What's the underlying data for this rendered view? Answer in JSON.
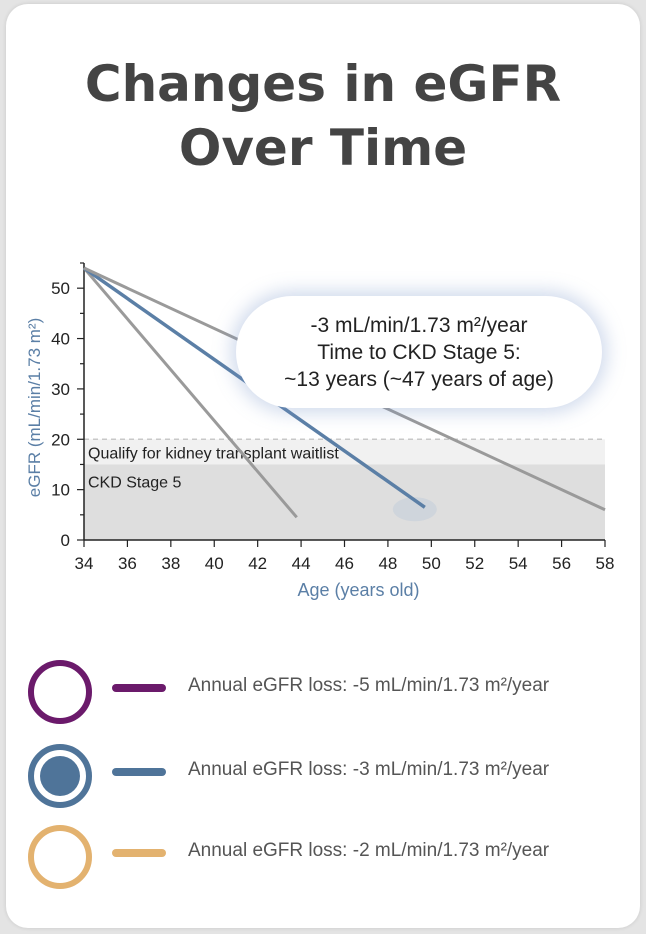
{
  "title_lines": [
    "Changes in eGFR",
    "Over Time"
  ],
  "callout": {
    "line1": "-3 mL/min/1.73 m²/year",
    "line2": "Time to CKD Stage 5:",
    "line3": "~13 years (~47 years of age)"
  },
  "legend": [
    {
      "label": "Annual eGFR loss: -5 mL/min/1.73 m²/year",
      "color": "#6b1a6b",
      "filled": false
    },
    {
      "label": "Annual eGFR loss: -3 mL/min/1.73 m²/year",
      "color": "#4f7499",
      "filled": true
    },
    {
      "label": "Annual eGFR loss: -2 mL/min/1.73 m²/year",
      "color": "#e3b26f",
      "filled": false
    }
  ],
  "chart_data": {
    "type": "line",
    "xlabel": "Age (years old)",
    "ylabel": "eGFR (mL/min/1.73 m²)",
    "xlim": [
      34,
      58
    ],
    "ylim": [
      0,
      55
    ],
    "xticks": [
      34,
      36,
      38,
      40,
      42,
      44,
      46,
      48,
      50,
      52,
      54,
      56,
      58
    ],
    "yticks": [
      0,
      10,
      20,
      30,
      40,
      50
    ],
    "series": [
      {
        "x": [
          34,
          43.8
        ],
        "y": [
          54,
          4.5
        ],
        "color": "#9a9a9a"
      },
      {
        "x": [
          34,
          49.7
        ],
        "y": [
          54,
          6.5
        ],
        "color": "#5b7fa6"
      },
      {
        "x": [
          34,
          58
        ],
        "y": [
          54,
          6
        ],
        "color": "#9a9a9a"
      }
    ],
    "bands": [
      {
        "label": "Qualify for kidney transplant waitlist",
        "y0": 15,
        "y1": 20,
        "color": "#f1f1f1"
      },
      {
        "label": "CKD Stage 5",
        "y0": 0,
        "y1": 15,
        "color": "#dedede"
      }
    ],
    "colors": {
      "axis": "#222222",
      "ylabel": "#5b7fa6",
      "xlabel": "#5b7fa6"
    }
  }
}
